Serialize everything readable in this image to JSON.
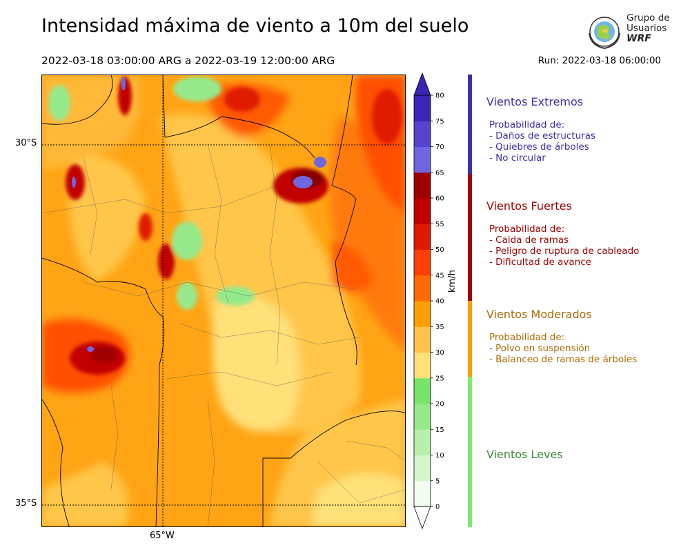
{
  "header": {
    "title": "Intensidad máxima de viento a 10m del suelo",
    "period": "2022-03-18 03:00:00 ARG  a  2022-03-19 12:00:00 ARG",
    "run": "Run: 2022-03-18 06:00:00"
  },
  "logo": {
    "line1": "Grupo de",
    "line2": "Usuarios",
    "line3": "WRF"
  },
  "map": {
    "lat_labels": [
      "30°S",
      "35°S"
    ],
    "lon_labels": [
      "65°W"
    ]
  },
  "colorbar": {
    "unit": "km/h",
    "ticks": [
      "0",
      "5",
      "10",
      "15",
      "20",
      "25",
      "30",
      "35",
      "40",
      "45",
      "50",
      "55",
      "60",
      "65",
      "70",
      "75",
      "80"
    ],
    "colors": [
      "#f2fcef",
      "#d3f6cb",
      "#b6f0ab",
      "#96e98b",
      "#78e36a",
      "#ffe079",
      "#ffc34b",
      "#ff9f00",
      "#ff6b00",
      "#ff3f00",
      "#e01a00",
      "#c20000",
      "#a00000",
      "#6f66e0",
      "#5544d0",
      "#3a26b6"
    ]
  },
  "categories": [
    {
      "title": "Vientos Extremos",
      "color": "#3c2fa8",
      "lines": [
        "Probabilidad de:",
        "- Daños de estructuras",
        "- Quiebres de árboles",
        "- No circular"
      ]
    },
    {
      "title": "Vientos Fuertes",
      "color": "#9b0000",
      "lines": [
        "Probabilidad de:",
        "- Caida de ramas",
        "- Peligro de ruptura de cableado",
        "- Dificultad de avance"
      ]
    },
    {
      "title": "Vientos Moderados",
      "color": "#a86a00",
      "lines": [
        "Probabilidad de:",
        "- Polvo en suspensión",
        "- Balanceo de ramas de árboles"
      ]
    },
    {
      "title": "Vientos Leves",
      "color": "#3d8a3a",
      "lines": []
    }
  ],
  "category_bar_colors": [
    "#3c2fb0",
    "#a00000",
    "#ff9f00",
    "#78ee6a"
  ]
}
